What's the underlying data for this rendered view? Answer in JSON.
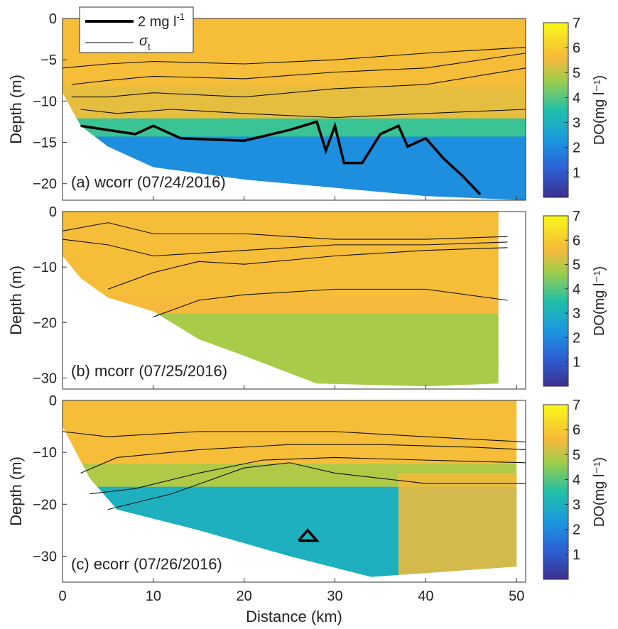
{
  "chart_data": [
    {
      "type": "heatmap",
      "panel_label": "(a) wcorr (07/24/2016)",
      "xlabel": "",
      "ylabel": "Depth (m)",
      "xlim": [
        0,
        51
      ],
      "ylim": [
        -22,
        0
      ],
      "yticks": [
        0,
        -5,
        -10,
        -15,
        -20
      ],
      "xticks": [
        0,
        10,
        20,
        30,
        40,
        50
      ],
      "xtick_labels_shown": false,
      "colorbar": {
        "label": "DO(mg l⁻¹)",
        "ticks": [
          1,
          2,
          3,
          4,
          5,
          6,
          7
        ]
      },
      "bottom_depth": [
        [
          0,
          -9
        ],
        [
          2,
          -13
        ],
        [
          5,
          -15.5
        ],
        [
          10,
          -18
        ],
        [
          20,
          -19.5
        ],
        [
          30,
          -20.5
        ],
        [
          40,
          -21.5
        ],
        [
          51,
          -22
        ]
      ],
      "sigma_t_contours": [
        [
          [
            0,
            -6
          ],
          [
            5,
            -5.5
          ],
          [
            10,
            -5.2
          ],
          [
            20,
            -5.5
          ],
          [
            30,
            -5
          ],
          [
            40,
            -4.2
          ],
          [
            51,
            -3.5
          ]
        ],
        [
          [
            1,
            -8
          ],
          [
            5,
            -7.5
          ],
          [
            10,
            -7
          ],
          [
            20,
            -7.3
          ],
          [
            30,
            -6.5
          ],
          [
            40,
            -6
          ],
          [
            51,
            -4.2
          ]
        ],
        [
          [
            1,
            -9.5
          ],
          [
            5,
            -9.5
          ],
          [
            10,
            -9
          ],
          [
            20,
            -9.5
          ],
          [
            30,
            -8.5
          ],
          [
            40,
            -8
          ],
          [
            51,
            -6
          ]
        ],
        [
          [
            2,
            -11
          ],
          [
            6,
            -11.5
          ],
          [
            12,
            -11
          ],
          [
            20,
            -11.5
          ],
          [
            30,
            -12
          ],
          [
            40,
            -11.5
          ],
          [
            51,
            -11
          ]
        ]
      ],
      "do_2mg_contour": [
        [
          2,
          -13
        ],
        [
          5,
          -13.5
        ],
        [
          8,
          -14
        ],
        [
          10,
          -13
        ],
        [
          13,
          -14.5
        ],
        [
          20,
          -14.8
        ],
        [
          25,
          -13.5
        ],
        [
          28,
          -12.5
        ],
        [
          29,
          -16
        ],
        [
          30,
          -13
        ],
        [
          31,
          -17.5
        ],
        [
          33,
          -17.5
        ],
        [
          35,
          -14
        ],
        [
          37,
          -13
        ],
        [
          38,
          -15.5
        ],
        [
          40,
          -14.5
        ],
        [
          42,
          -17
        ],
        [
          44,
          -19
        ],
        [
          46,
          -21.3
        ]
      ],
      "do_field_description_zones": [
        {
          "region": "surface (0 to -8 m)",
          "DO": 5.8
        },
        {
          "region": "mid (-8 to -12 m)",
          "DO": 4.8
        },
        {
          "region": "bottom (below -13 m)",
          "DO": 1.8
        }
      ]
    },
    {
      "type": "heatmap",
      "panel_label": "(b) mcorr (07/25/2016)",
      "xlabel": "",
      "ylabel": "Depth (m)",
      "xlim": [
        0,
        51
      ],
      "ylim": [
        -32,
        0
      ],
      "yticks": [
        0,
        -10,
        -20,
        -30
      ],
      "xticks": [
        0,
        10,
        20,
        30,
        40,
        50
      ],
      "xtick_labels_shown": false,
      "colorbar": {
        "label": "DO(mg l⁻¹)",
        "ticks": [
          1,
          2,
          3,
          4,
          5,
          6,
          7
        ]
      },
      "bottom_depth": [
        [
          0,
          -8
        ],
        [
          2,
          -12
        ],
        [
          5,
          -15.5
        ],
        [
          10,
          -18
        ],
        [
          15,
          -23
        ],
        [
          20,
          -26
        ],
        [
          28,
          -31
        ],
        [
          40,
          -31.5
        ],
        [
          48,
          -31
        ]
      ],
      "sigma_t_contours": [
        [
          [
            0,
            -3.5
          ],
          [
            5,
            -2
          ],
          [
            10,
            -4
          ],
          [
            20,
            -4
          ],
          [
            30,
            -5
          ],
          [
            40,
            -5
          ],
          [
            49,
            -4.5
          ]
        ],
        [
          [
            0,
            -5
          ],
          [
            5,
            -6
          ],
          [
            10,
            -8
          ],
          [
            20,
            -7
          ],
          [
            30,
            -6
          ],
          [
            40,
            -6
          ],
          [
            49,
            -5.5
          ]
        ],
        [
          [
            5,
            -14
          ],
          [
            10,
            -11
          ],
          [
            15,
            -9
          ],
          [
            20,
            -9.5
          ],
          [
            30,
            -8
          ],
          [
            40,
            -7
          ],
          [
            49,
            -6.5
          ]
        ],
        [
          [
            10,
            -19
          ],
          [
            15,
            -16
          ],
          [
            20,
            -15
          ],
          [
            30,
            -14
          ],
          [
            40,
            -14
          ],
          [
            49,
            -16
          ]
        ]
      ],
      "do_field_description_zones": [
        {
          "region": "upper (0 to -15 m)",
          "DO": 5.8
        },
        {
          "region": "lower (below -18 m)",
          "DO": 4.2
        }
      ]
    },
    {
      "type": "heatmap",
      "panel_label": "(c) ecorr (07/26/2016)",
      "xlabel": "Distance (km)",
      "ylabel": "Depth (m)",
      "xlim": [
        0,
        51
      ],
      "ylim": [
        -35,
        0
      ],
      "yticks": [
        0,
        -10,
        -20,
        -30
      ],
      "xticks": [
        0,
        10,
        20,
        30,
        40,
        50
      ],
      "xtick_labels_shown": true,
      "colorbar": {
        "label": "DO(mg l⁻¹)",
        "ticks": [
          1,
          2,
          3,
          4,
          5,
          6,
          7
        ]
      },
      "bottom_depth": [
        [
          0,
          -5
        ],
        [
          3,
          -15
        ],
        [
          6,
          -21
        ],
        [
          15,
          -25
        ],
        [
          25,
          -30
        ],
        [
          34,
          -34
        ],
        [
          42,
          -33
        ],
        [
          50,
          -32
        ]
      ],
      "sigma_t_contours": [
        [
          [
            0,
            -6
          ],
          [
            5,
            -7
          ],
          [
            15,
            -6
          ],
          [
            22,
            -6
          ],
          [
            30,
            -6
          ],
          [
            40,
            -7
          ],
          [
            51,
            -8
          ]
        ],
        [
          [
            2,
            -14
          ],
          [
            6,
            -11
          ],
          [
            15,
            -9.5
          ],
          [
            25,
            -8.5
          ],
          [
            35,
            -8.5
          ],
          [
            45,
            -9
          ],
          [
            51,
            -9.5
          ]
        ],
        [
          [
            3,
            -18
          ],
          [
            8,
            -17
          ],
          [
            15,
            -14
          ],
          [
            22,
            -11.5
          ],
          [
            30,
            -11
          ],
          [
            40,
            -11.5
          ],
          [
            51,
            -12
          ]
        ],
        [
          [
            5,
            -21
          ],
          [
            12,
            -18
          ],
          [
            20,
            -13
          ],
          [
            25,
            -12
          ],
          [
            30,
            -14
          ],
          [
            40,
            -16
          ],
          [
            51,
            -16
          ]
        ]
      ],
      "do_2mg_contour": [
        [
          26,
          -27
        ],
        [
          27,
          -25
        ],
        [
          28,
          -27
        ],
        [
          26,
          -27
        ]
      ],
      "do_field_description_zones": [
        {
          "region": "upper (0 to -12 m)",
          "DO": 5.8
        },
        {
          "region": "lower central (below -14 m)",
          "DO": 2.5
        }
      ]
    }
  ],
  "legend": {
    "entries": [
      {
        "label": "2 mg l",
        "superscript": "-1",
        "style": "thick"
      },
      {
        "label": "σ",
        "subscript": "t",
        "style": "thin"
      }
    ]
  }
}
